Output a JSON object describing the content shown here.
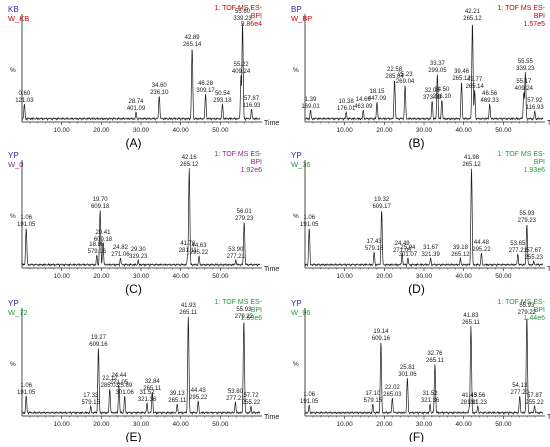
{
  "figure": {
    "colors": {
      "trace": "#1a1a1a",
      "sample_name": "#2a2aa0",
      "trace_name_red": "#cc0000",
      "trace_name_purple": "#8a2a8a",
      "trace_name_green": "#1f9a3a"
    }
  },
  "chart_data": [
    {
      "type": "line",
      "panel_label": "(A)",
      "sample": "KB",
      "trace_name": "W_KB",
      "trace_name_color": "red",
      "info": [
        "1: TOF MS ES-",
        "BPI",
        "9.86e4"
      ],
      "ylabel": "%",
      "xlabel": "Time",
      "xlim": [
        0,
        60
      ],
      "ylim": [
        0,
        100
      ],
      "xticks": [
        10,
        20,
        30,
        40,
        50
      ],
      "xtick_labels": [
        "10.00",
        "20.00",
        "30.00",
        "40.00",
        "50.00"
      ],
      "peaks": [
        {
          "rt": 0.6,
          "mz": "121.03",
          "intensity": 18
        },
        {
          "rt": 28.74,
          "mz": "401.09",
          "intensity": 10
        },
        {
          "rt": 34.6,
          "mz": "236.10",
          "intensity": 26
        },
        {
          "rt": 42.89,
          "mz": "265.14",
          "intensity": 74
        },
        {
          "rt": 46.28,
          "mz": "309.17",
          "intensity": 28
        },
        {
          "rt": 50.54,
          "mz": "293.18",
          "intensity": 18
        },
        {
          "rt": 55.22,
          "mz": "409.24",
          "intensity": 47
        },
        {
          "rt": 55.6,
          "mz": "339.23",
          "intensity": 100
        },
        {
          "rt": 57.87,
          "mz": "116.93",
          "intensity": 13
        }
      ]
    },
    {
      "type": "line",
      "panel_label": "(B)",
      "sample": "BP",
      "trace_name": "W_BP",
      "trace_name_color": "red",
      "info": [
        "1: TOF MS ES-",
        "BPI",
        "1.57e5"
      ],
      "ylabel": "%",
      "xlabel": "Time",
      "xlim": [
        0,
        60
      ],
      "ylim": [
        0,
        100
      ],
      "xticks": [
        10,
        20,
        30,
        40,
        50
      ],
      "xtick_labels": [
        "10.00",
        "20.00",
        "30.00",
        "40.00",
        "50.00"
      ],
      "peaks": [
        {
          "rt": 1.39,
          "mz": "169.01",
          "intensity": 12
        },
        {
          "rt": 10.38,
          "mz": "176.01",
          "intensity": 10
        },
        {
          "rt": 14.69,
          "mz": "463.09",
          "intensity": 12
        },
        {
          "rt": 18.15,
          "mz": "447.09",
          "intensity": 20
        },
        {
          "rt": 22.58,
          "mz": "285.04",
          "intensity": 42
        },
        {
          "rt": 25.23,
          "mz": "269.04",
          "intensity": 37
        },
        {
          "rt": 32.05,
          "mz": "373.09",
          "intensity": 21
        },
        {
          "rt": 33.37,
          "mz": "299.05",
          "intensity": 48
        },
        {
          "rt": 34.5,
          "mz": "236.10",
          "intensity": 22
        },
        {
          "rt": 39.46,
          "mz": "265.12",
          "intensity": 40
        },
        {
          "rt": 42.21,
          "mz": "265.12",
          "intensity": 100
        },
        {
          "rt": 42.77,
          "mz": "265.14",
          "intensity": 32
        },
        {
          "rt": 46.56,
          "mz": "469.33",
          "intensity": 18
        },
        {
          "rt": 55.17,
          "mz": "409.24",
          "intensity": 30
        },
        {
          "rt": 55.55,
          "mz": "339.23",
          "intensity": 50
        },
        {
          "rt": 57.92,
          "mz": "116.93",
          "intensity": 11
        }
      ]
    },
    {
      "type": "line",
      "panel_label": "(C)",
      "sample": "YP",
      "trace_name": "W_0",
      "trace_name_color": "purple",
      "info": [
        "1: TOF MS ES-",
        "BPI",
        "1.92e6"
      ],
      "ylabel": "%",
      "xlabel": "Time",
      "xlim": [
        0,
        60
      ],
      "ylim": [
        0,
        100
      ],
      "xticks": [
        10,
        20,
        30,
        40,
        50
      ],
      "xtick_labels": [
        "10.00",
        "20.00",
        "30.00",
        "40.00",
        "50.00"
      ],
      "peaks": [
        {
          "rt": 1.06,
          "mz": "191.05",
          "intensity": 40
        },
        {
          "rt": 18.86,
          "mz": "579.16",
          "intensity": 13
        },
        {
          "rt": 19.7,
          "mz": "609.18",
          "intensity": 58
        },
        {
          "rt": 20.41,
          "mz": "609.18",
          "intensity": 25
        },
        {
          "rt": 24.82,
          "mz": "271.06",
          "intensity": 10
        },
        {
          "rt": 29.3,
          "mz": "329.23",
          "intensity": 8
        },
        {
          "rt": 41.78,
          "mz": "281.11",
          "intensity": 14
        },
        {
          "rt": 42.16,
          "mz": "265.12",
          "intensity": 100
        },
        {
          "rt": 44.63,
          "mz": "295.22",
          "intensity": 12
        },
        {
          "rt": 53.9,
          "mz": "277.21",
          "intensity": 8
        },
        {
          "rt": 56.01,
          "mz": "279.23",
          "intensity": 46
        }
      ]
    },
    {
      "type": "line",
      "panel_label": "(D)",
      "sample": "YP",
      "trace_name": "W_36",
      "trace_name_color": "green",
      "info": [
        "1: TOF MS ES-",
        "BPI",
        "1.93e6"
      ],
      "ylabel": "%",
      "xlabel": "Time",
      "xlim": [
        0,
        60
      ],
      "ylim": [
        0,
        100
      ],
      "xticks": [
        10,
        20,
        30,
        40,
        50
      ],
      "xtick_labels": [
        "10.00",
        "20.00",
        "30.00",
        "40.00",
        "50.00"
      ],
      "peaks": [
        {
          "rt": 1.06,
          "mz": "191.05",
          "intensity": 40
        },
        {
          "rt": 17.43,
          "mz": "579.16",
          "intensity": 16
        },
        {
          "rt": 19.32,
          "mz": "609.17",
          "intensity": 58
        },
        {
          "rt": 24.49,
          "mz": "271.05",
          "intensity": 14
        },
        {
          "rt": 25.94,
          "mz": "301.07",
          "intensity": 10
        },
        {
          "rt": 31.67,
          "mz": "321.39",
          "intensity": 10
        },
        {
          "rt": 39.18,
          "mz": "265.12",
          "intensity": 10
        },
        {
          "rt": 41.98,
          "mz": "265.12",
          "intensity": 100
        },
        {
          "rt": 44.48,
          "mz": "295.22",
          "intensity": 15
        },
        {
          "rt": 53.65,
          "mz": "277.21",
          "intensity": 14
        },
        {
          "rt": 55.93,
          "mz": "279.23",
          "intensity": 44
        },
        {
          "rt": 57.67,
          "mz": "255.23",
          "intensity": 7
        }
      ]
    },
    {
      "type": "line",
      "panel_label": "(E)",
      "sample": "YP",
      "trace_name": "W_72",
      "trace_name_color": "green",
      "info": [
        "1: TOF MS ES-",
        "BPI",
        "1.69e6"
      ],
      "ylabel": "%",
      "xlabel": "Time",
      "xlim": [
        0,
        60
      ],
      "ylim": [
        0,
        100
      ],
      "xticks": [
        10,
        20,
        30,
        40,
        50
      ],
      "xtick_labels": [
        "10.00",
        "20.00",
        "30.00",
        "40.00",
        "50.00"
      ],
      "peaks": [
        {
          "rt": 1.06,
          "mz": "191.05",
          "intensity": 20
        },
        {
          "rt": 17.33,
          "mz": "579.15",
          "intensity": 10
        },
        {
          "rt": 19.27,
          "mz": "609.16",
          "intensity": 68
        },
        {
          "rt": 22.12,
          "mz": "285.03",
          "intensity": 27
        },
        {
          "rt": 24.44,
          "mz": "271.05",
          "intensity": 30
        },
        {
          "rt": 25.89,
          "mz": "301.06",
          "intensity": 20
        },
        {
          "rt": 31.52,
          "mz": "321.36",
          "intensity": 13
        },
        {
          "rt": 32.84,
          "mz": "265.11",
          "intensity": 24
        },
        {
          "rt": 39.13,
          "mz": "265.11",
          "intensity": 12
        },
        {
          "rt": 41.93,
          "mz": "265.11",
          "intensity": 100
        },
        {
          "rt": 44.43,
          "mz": "295.22",
          "intensity": 15
        },
        {
          "rt": 53.8,
          "mz": "277.21",
          "intensity": 14
        },
        {
          "rt": 55.93,
          "mz": "279.22",
          "intensity": 96
        },
        {
          "rt": 57.72,
          "mz": "255.22",
          "intensity": 10
        }
      ]
    },
    {
      "type": "line",
      "panel_label": "(F)",
      "sample": "YP",
      "trace_name": "W_96",
      "trace_name_color": "green",
      "info": [
        "1: TOF MS ES-",
        "BPI",
        "1.44e6"
      ],
      "ylabel": "%",
      "xlabel": "Time",
      "xlim": [
        0,
        60
      ],
      "ylim": [
        0,
        100
      ],
      "xticks": [
        10,
        20,
        30,
        40,
        50
      ],
      "xtick_labels": [
        "10.00",
        "20.00",
        "30.00",
        "40.00",
        "50.00"
      ],
      "peaks": [
        {
          "rt": 1.06,
          "mz": "191.05",
          "intensity": 11
        },
        {
          "rt": 17.1,
          "mz": "579.15",
          "intensity": 12
        },
        {
          "rt": 19.14,
          "mz": "609.16",
          "intensity": 74
        },
        {
          "rt": 22.02,
          "mz": "285.03",
          "intensity": 18
        },
        {
          "rt": 25.81,
          "mz": "301.06",
          "intensity": 38
        },
        {
          "rt": 31.52,
          "mz": "321.36",
          "intensity": 12
        },
        {
          "rt": 32.76,
          "mz": "265.11",
          "intensity": 52
        },
        {
          "rt": 41.45,
          "mz": "281.11",
          "intensity": 10
        },
        {
          "rt": 41.83,
          "mz": "265.11",
          "intensity": 90
        },
        {
          "rt": 43.56,
          "mz": "281.23",
          "intensity": 10
        },
        {
          "rt": 54.13,
          "mz": "277.20",
          "intensity": 20
        },
        {
          "rt": 55.93,
          "mz": "279.22",
          "intensity": 100
        },
        {
          "rt": 57.87,
          "mz": "255.22",
          "intensity": 10
        }
      ]
    }
  ]
}
